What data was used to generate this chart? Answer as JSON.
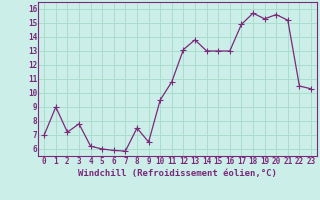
{
  "x": [
    0,
    1,
    2,
    3,
    4,
    5,
    6,
    7,
    8,
    9,
    10,
    11,
    12,
    13,
    14,
    15,
    16,
    17,
    18,
    19,
    20,
    21,
    22,
    23
  ],
  "y": [
    7.0,
    9.0,
    7.2,
    7.8,
    6.2,
    6.0,
    5.9,
    5.85,
    7.5,
    6.5,
    9.5,
    10.8,
    13.1,
    13.8,
    13.0,
    13.0,
    13.0,
    14.9,
    15.7,
    15.3,
    15.6,
    15.2,
    10.5,
    10.3
  ],
  "line_color": "#7a2a7a",
  "marker_color": "#7a2a7a",
  "bg_color": "#cceee8",
  "grid_color": "#aaddcc",
  "xlabel": "Windchill (Refroidissement éolien,°C)",
  "xlim": [
    -0.5,
    23.5
  ],
  "ylim": [
    5.5,
    16.5
  ],
  "yticks": [
    6,
    7,
    8,
    9,
    10,
    11,
    12,
    13,
    14,
    15,
    16
  ],
  "xticks": [
    0,
    1,
    2,
    3,
    4,
    5,
    6,
    7,
    8,
    9,
    10,
    11,
    12,
    13,
    14,
    15,
    16,
    17,
    18,
    19,
    20,
    21,
    22,
    23
  ],
  "tick_fontsize": 5.5,
  "label_fontsize": 6.5,
  "marker_size": 2.0,
  "line_width": 0.9
}
